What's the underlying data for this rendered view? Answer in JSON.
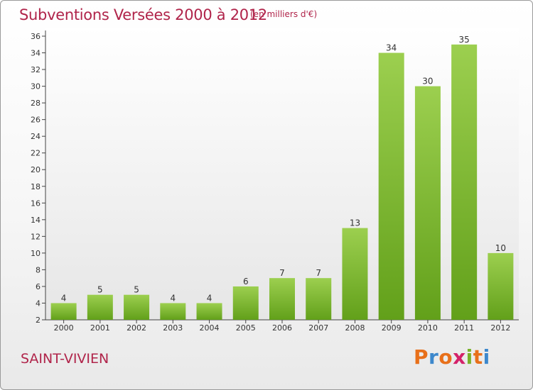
{
  "header": {
    "title": "Subventions Versées 2000 à 2012",
    "unit": "(en milliers d'€)"
  },
  "footer": {
    "commune": "SAINT-VIVIEN",
    "logo_letters": [
      "P",
      "r",
      "o",
      "x",
      "i",
      "t",
      "i"
    ],
    "logo_colors": [
      "#e8701a",
      "#3d88cc",
      "#e8701a",
      "#d4226a",
      "#7ab22a",
      "#e8701a",
      "#3d88cc"
    ]
  },
  "chart_data": {
    "type": "bar",
    "title": "Subventions Versées 2000 à 2012",
    "categories": [
      "2000",
      "2001",
      "2002",
      "2003",
      "2004",
      "2005",
      "2006",
      "2007",
      "2008",
      "2009",
      "2010",
      "2011",
      "2012"
    ],
    "values": [
      4,
      5,
      5,
      4,
      4,
      6,
      7,
      7,
      13,
      34,
      30,
      35,
      10
    ],
    "xlabel": "",
    "ylabel": "",
    "ylim": [
      2,
      36
    ],
    "yticks": [
      2,
      4,
      6,
      8,
      10,
      12,
      14,
      16,
      18,
      20,
      22,
      24,
      26,
      28,
      30,
      32,
      34,
      36
    ],
    "grid": false,
    "bar_color_top": "#9ccf4f",
    "bar_color_bottom": "#62a01a"
  }
}
